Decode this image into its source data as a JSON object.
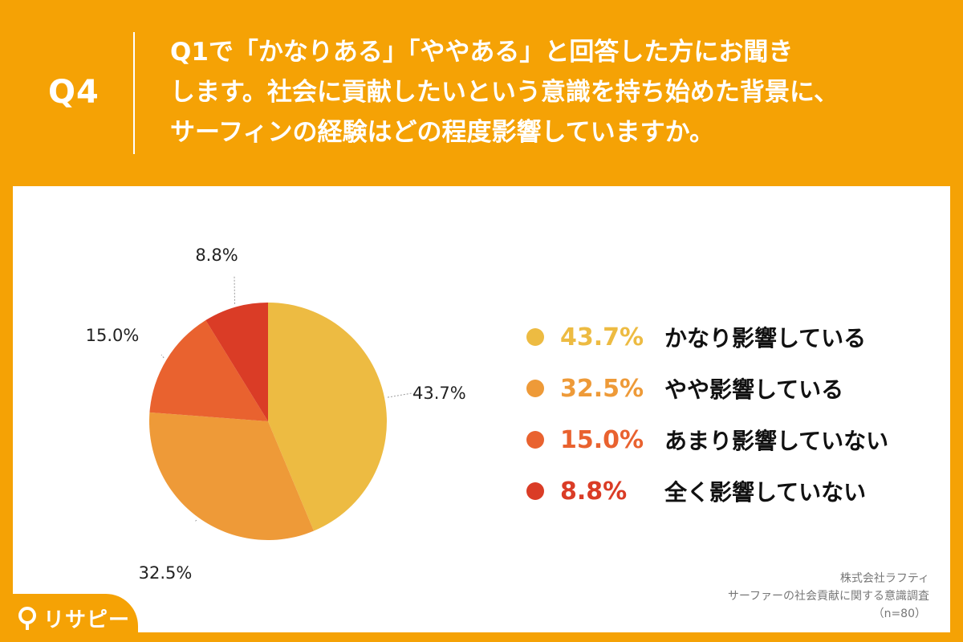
{
  "header": {
    "question_number": "Q4",
    "question_text": "Q1で「かなりある」「ややある」と回答した方にお聞き\nします。社会に貢献したいという意識を持ち始めた背景に、\nサーフィンの経験はどの程度影響していますか。"
  },
  "chart_data": {
    "type": "pie",
    "categories": [
      "かなり影響している",
      "やや影響している",
      "あまり影響していない",
      "全く影響していない"
    ],
    "values": [
      43.7,
      32.5,
      15.0,
      8.8
    ],
    "value_labels": [
      "43.7%",
      "32.5%",
      "15.0%",
      "8.8%"
    ],
    "colors": [
      "#EDBB42",
      "#EE9A38",
      "#E9622F",
      "#DA3C26"
    ],
    "start_angle_deg": 0,
    "direction": "clockwise",
    "legend_position": "right"
  },
  "source": {
    "company": "株式会社ラフティ",
    "survey": "サーファーの社会貢献に関する意識調査",
    "sample": "（n=80）"
  },
  "brand": {
    "name": "リサピー",
    "icon": "magnifier-icon"
  }
}
